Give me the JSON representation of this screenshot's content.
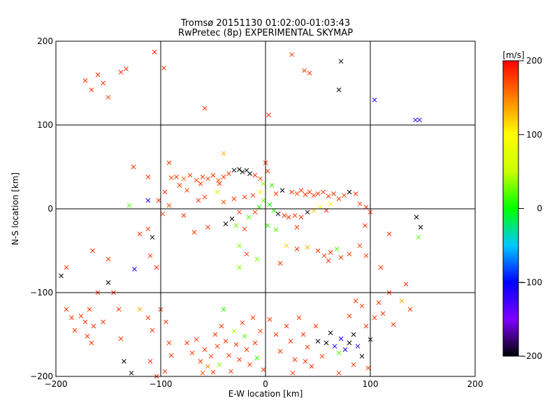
{
  "chart_data": {
    "type": "scatter",
    "title": "Tromsø 20151130 01:02:00-01:03:43",
    "subtitle": "RwPretec (8p) EXPERIMENTAL SKYMAP",
    "xlabel": "E-W location [km]",
    "ylabel": "N-S location [km]",
    "xlim": [
      -200,
      200
    ],
    "ylim": [
      -200,
      200
    ],
    "x_ticks": [
      -200,
      -100,
      0,
      100,
      200
    ],
    "y_ticks": [
      -200,
      -100,
      0,
      100,
      200
    ],
    "grid": true,
    "colorbar": {
      "label": "[m/s]",
      "range": [
        -200,
        200
      ],
      "ticks": [
        200,
        100,
        0,
        -100,
        -200
      ],
      "colors": [
        "#000000",
        "#7f00ff",
        "#0000ff",
        "#00c8ff",
        "#00ff00",
        "#c8ff00",
        "#ffff00",
        "#ff8000",
        "#ff0000"
      ]
    },
    "points": [
      {
        "x": -172,
        "y": 153,
        "v": 180
      },
      {
        "x": -166,
        "y": 142,
        "v": 180
      },
      {
        "x": -160,
        "y": 160,
        "v": 180
      },
      {
        "x": -155,
        "y": 150,
        "v": 180
      },
      {
        "x": -150,
        "y": 133,
        "v": 170
      },
      {
        "x": -138,
        "y": 163,
        "v": 180
      },
      {
        "x": -133,
        "y": 167,
        "v": 180
      },
      {
        "x": -106,
        "y": 187,
        "v": 190
      },
      {
        "x": -97,
        "y": 168,
        "v": 180
      },
      {
        "x": -58,
        "y": 120,
        "v": 180
      },
      {
        "x": 3,
        "y": 112,
        "v": 180
      },
      {
        "x": 25,
        "y": 184,
        "v": 180
      },
      {
        "x": 37,
        "y": 165,
        "v": 180
      },
      {
        "x": 42,
        "y": 162,
        "v": 180
      },
      {
        "x": 72,
        "y": 176,
        "v": -200
      },
      {
        "x": 70,
        "y": 142,
        "v": -200
      },
      {
        "x": 104,
        "y": 130,
        "v": -110
      },
      {
        "x": 143,
        "y": 106,
        "v": -110
      },
      {
        "x": 147,
        "y": 106,
        "v": -110
      },
      {
        "x": -90,
        "y": 37,
        "v": 170
      },
      {
        "x": -85,
        "y": 38,
        "v": 180
      },
      {
        "x": -78,
        "y": 36,
        "v": 160
      },
      {
        "x": -72,
        "y": 40,
        "v": 180
      },
      {
        "x": -66,
        "y": 34,
        "v": 180
      },
      {
        "x": -60,
        "y": 38,
        "v": 180
      },
      {
        "x": -55,
        "y": 36,
        "v": 175
      },
      {
        "x": -50,
        "y": 40,
        "v": 180
      },
      {
        "x": -45,
        "y": 34,
        "v": 170
      },
      {
        "x": -40,
        "y": 38,
        "v": 180
      },
      {
        "x": -35,
        "y": 42,
        "v": 180
      },
      {
        "x": -30,
        "y": 46,
        "v": -200
      },
      {
        "x": -25,
        "y": 47,
        "v": -200
      },
      {
        "x": -22,
        "y": 44,
        "v": -200
      },
      {
        "x": -18,
        "y": 46,
        "v": -200
      },
      {
        "x": -15,
        "y": 42,
        "v": -200
      },
      {
        "x": -10,
        "y": 40,
        "v": 180
      },
      {
        "x": -5,
        "y": 36,
        "v": 170
      },
      {
        "x": 0,
        "y": 55,
        "v": 180
      },
      {
        "x": 2,
        "y": 45,
        "v": 180
      },
      {
        "x": -62,
        "y": 30,
        "v": 180
      },
      {
        "x": -82,
        "y": 28,
        "v": 180
      },
      {
        "x": -75,
        "y": 22,
        "v": 170
      },
      {
        "x": -96,
        "y": 20,
        "v": 180
      },
      {
        "x": -44,
        "y": 30,
        "v": 180
      },
      {
        "x": -112,
        "y": 38,
        "v": 180
      },
      {
        "x": -126,
        "y": 50,
        "v": 180
      },
      {
        "x": -92,
        "y": 55,
        "v": 180
      },
      {
        "x": -40,
        "y": 66,
        "v": 130
      },
      {
        "x": -46,
        "y": 20,
        "v": 60
      },
      {
        "x": 25,
        "y": 20,
        "v": 180
      },
      {
        "x": 30,
        "y": 18,
        "v": 170
      },
      {
        "x": 34,
        "y": 22,
        "v": 180
      },
      {
        "x": 38,
        "y": 17,
        "v": 180
      },
      {
        "x": 42,
        "y": 20,
        "v": 175
      },
      {
        "x": 46,
        "y": 16,
        "v": 180
      },
      {
        "x": 50,
        "y": 18,
        "v": 180
      },
      {
        "x": 55,
        "y": 20,
        "v": 180
      },
      {
        "x": 60,
        "y": 15,
        "v": 180
      },
      {
        "x": 65,
        "y": 18,
        "v": 180
      },
      {
        "x": 70,
        "y": 12,
        "v": 175
      },
      {
        "x": 75,
        "y": 16,
        "v": 180
      },
      {
        "x": 80,
        "y": 20,
        "v": -200
      },
      {
        "x": 86,
        "y": 18,
        "v": 180
      },
      {
        "x": 16,
        "y": 22,
        "v": -200
      },
      {
        "x": 10,
        "y": 18,
        "v": 180
      },
      {
        "x": -12,
        "y": 16,
        "v": 180
      },
      {
        "x": -20,
        "y": 14,
        "v": 180
      },
      {
        "x": -30,
        "y": 12,
        "v": 180
      },
      {
        "x": -40,
        "y": 8,
        "v": 170
      },
      {
        "x": -58,
        "y": 14,
        "v": 180
      },
      {
        "x": -64,
        "y": 10,
        "v": 180
      },
      {
        "x": -5,
        "y": 20,
        "v": 100
      },
      {
        "x": -2,
        "y": 10,
        "v": 30
      },
      {
        "x": 4,
        "y": 5,
        "v": 0
      },
      {
        "x": -6,
        "y": 2,
        "v": 10
      },
      {
        "x": 8,
        "y": -2,
        "v": 10
      },
      {
        "x": -10,
        "y": -4,
        "v": 180
      },
      {
        "x": 12,
        "y": -6,
        "v": -200
      },
      {
        "x": -16,
        "y": -10,
        "v": 20
      },
      {
        "x": 18,
        "y": -8,
        "v": 180
      },
      {
        "x": 22,
        "y": -10,
        "v": 180
      },
      {
        "x": 28,
        "y": -8,
        "v": 175
      },
      {
        "x": 34,
        "y": -10,
        "v": 180
      },
      {
        "x": 40,
        "y": -4,
        "v": -200
      },
      {
        "x": 46,
        "y": -2,
        "v": 120
      },
      {
        "x": 52,
        "y": 2,
        "v": 100
      },
      {
        "x": 58,
        "y": -2,
        "v": 180
      },
      {
        "x": 62,
        "y": 6,
        "v": 110
      },
      {
        "x": -25,
        "y": -4,
        "v": 180
      },
      {
        "x": -32,
        "y": -12,
        "v": -200
      },
      {
        "x": -38,
        "y": -18,
        "v": -200
      },
      {
        "x": -28,
        "y": -20,
        "v": 30
      },
      {
        "x": -20,
        "y": -24,
        "v": 180
      },
      {
        "x": 2,
        "y": -20,
        "v": 10
      },
      {
        "x": 10,
        "y": -25,
        "v": 20
      },
      {
        "x": 30,
        "y": -22,
        "v": 180
      },
      {
        "x": 6,
        "y": 28,
        "v": 10
      },
      {
        "x": -2,
        "y": 30,
        "v": 40
      },
      {
        "x": 90,
        "y": 6,
        "v": 180
      },
      {
        "x": 96,
        "y": 2,
        "v": 180
      },
      {
        "x": 100,
        "y": -4,
        "v": 180
      },
      {
        "x": 95,
        "y": -20,
        "v": 180
      },
      {
        "x": -92,
        "y": 4,
        "v": 180
      },
      {
        "x": -98,
        "y": -6,
        "v": 175
      },
      {
        "x": -102,
        "y": 10,
        "v": 180
      },
      {
        "x": -78,
        "y": -8,
        "v": 180
      },
      {
        "x": -55,
        "y": -22,
        "v": 180
      },
      {
        "x": -68,
        "y": -28,
        "v": 180
      },
      {
        "x": -112,
        "y": -24,
        "v": 180
      },
      {
        "x": -120,
        "y": -30,
        "v": 180
      },
      {
        "x": -108,
        "y": -34,
        "v": -200
      },
      {
        "x": -130,
        "y": 4,
        "v": 20
      },
      {
        "x": -112,
        "y": 10,
        "v": -110
      },
      {
        "x": 144,
        "y": -10,
        "v": -200
      },
      {
        "x": 148,
        "y": -22,
        "v": -200
      },
      {
        "x": 146,
        "y": -34,
        "v": 20
      },
      {
        "x": 118,
        "y": -30,
        "v": 180
      },
      {
        "x": 20,
        "y": -44,
        "v": 120
      },
      {
        "x": 30,
        "y": -48,
        "v": 180
      },
      {
        "x": 40,
        "y": -46,
        "v": 130
      },
      {
        "x": 50,
        "y": -50,
        "v": 180
      },
      {
        "x": 56,
        "y": -56,
        "v": 180
      },
      {
        "x": 62,
        "y": -52,
        "v": 180
      },
      {
        "x": 68,
        "y": -48,
        "v": 20
      },
      {
        "x": 72,
        "y": -58,
        "v": 180
      },
      {
        "x": 80,
        "y": -54,
        "v": 180
      },
      {
        "x": 90,
        "y": -44,
        "v": 180
      },
      {
        "x": 96,
        "y": -56,
        "v": 180
      },
      {
        "x": 60,
        "y": -62,
        "v": 180
      },
      {
        "x": -25,
        "y": -44,
        "v": 30
      },
      {
        "x": -18,
        "y": -54,
        "v": 180
      },
      {
        "x": -8,
        "y": -60,
        "v": 30
      },
      {
        "x": 14,
        "y": -65,
        "v": 180
      },
      {
        "x": -25,
        "y": -70,
        "v": 30
      },
      {
        "x": -150,
        "y": -60,
        "v": 180
      },
      {
        "x": -165,
        "y": -50,
        "v": 180
      },
      {
        "x": -110,
        "y": -56,
        "v": 180
      },
      {
        "x": -104,
        "y": -70,
        "v": 180
      },
      {
        "x": 110,
        "y": -70,
        "v": 180
      },
      {
        "x": -125,
        "y": -72,
        "v": -110
      },
      {
        "x": -195,
        "y": -80,
        "v": -200
      },
      {
        "x": -190,
        "y": -70,
        "v": 180
      },
      {
        "x": -190,
        "y": -120,
        "v": 180
      },
      {
        "x": -185,
        "y": -130,
        "v": 180
      },
      {
        "x": -182,
        "y": -145,
        "v": 180
      },
      {
        "x": -176,
        "y": -128,
        "v": 180
      },
      {
        "x": -172,
        "y": -135,
        "v": 180
      },
      {
        "x": -170,
        "y": -152,
        "v": 180
      },
      {
        "x": -168,
        "y": -120,
        "v": 180
      },
      {
        "x": -166,
        "y": -160,
        "v": 180
      },
      {
        "x": -164,
        "y": -140,
        "v": 180
      },
      {
        "x": -160,
        "y": -100,
        "v": 180
      },
      {
        "x": -155,
        "y": -135,
        "v": 180
      },
      {
        "x": -150,
        "y": -88,
        "v": -200
      },
      {
        "x": -145,
        "y": -100,
        "v": 180
      },
      {
        "x": -140,
        "y": -120,
        "v": 180
      },
      {
        "x": -138,
        "y": -155,
        "v": 180
      },
      {
        "x": -135,
        "y": -182,
        "v": -200
      },
      {
        "x": -128,
        "y": -196,
        "v": -200
      },
      {
        "x": -120,
        "y": -120,
        "v": 130
      },
      {
        "x": -112,
        "y": -130,
        "v": 180
      },
      {
        "x": -108,
        "y": -145,
        "v": 180
      },
      {
        "x": -100,
        "y": -120,
        "v": 180
      },
      {
        "x": -95,
        "y": -135,
        "v": 180
      },
      {
        "x": -92,
        "y": -160,
        "v": 180
      },
      {
        "x": -90,
        "y": -175,
        "v": 180
      },
      {
        "x": -104,
        "y": -200,
        "v": 180
      },
      {
        "x": -110,
        "y": -182,
        "v": 180
      },
      {
        "x": -96,
        "y": -194,
        "v": 180
      },
      {
        "x": -75,
        "y": -160,
        "v": 180
      },
      {
        "x": -70,
        "y": -172,
        "v": 175
      },
      {
        "x": -66,
        "y": -156,
        "v": 180
      },
      {
        "x": -62,
        "y": -182,
        "v": 180
      },
      {
        "x": -60,
        "y": -196,
        "v": 170
      },
      {
        "x": -58,
        "y": -168,
        "v": 180
      },
      {
        "x": -55,
        "y": -188,
        "v": 150
      },
      {
        "x": -52,
        "y": -176,
        "v": 180
      },
      {
        "x": -50,
        "y": -195,
        "v": 180
      },
      {
        "x": -48,
        "y": -150,
        "v": 180
      },
      {
        "x": -46,
        "y": -164,
        "v": 180
      },
      {
        "x": -44,
        "y": -186,
        "v": 30
      },
      {
        "x": -42,
        "y": -140,
        "v": 180
      },
      {
        "x": -40,
        "y": -120,
        "v": 10
      },
      {
        "x": -38,
        "y": -158,
        "v": 180
      },
      {
        "x": -35,
        "y": -175,
        "v": 180
      },
      {
        "x": -33,
        "y": -194,
        "v": 180
      },
      {
        "x": -30,
        "y": -146,
        "v": 40
      },
      {
        "x": -28,
        "y": -162,
        "v": 180
      },
      {
        "x": -25,
        "y": -180,
        "v": 180
      },
      {
        "x": -22,
        "y": -136,
        "v": 180
      },
      {
        "x": -20,
        "y": -152,
        "v": 20
      },
      {
        "x": -18,
        "y": -168,
        "v": 180
      },
      {
        "x": -15,
        "y": -186,
        "v": 180
      },
      {
        "x": -12,
        "y": -130,
        "v": 180
      },
      {
        "x": -10,
        "y": -160,
        "v": 180
      },
      {
        "x": -8,
        "y": -178,
        "v": 10
      },
      {
        "x": -5,
        "y": -146,
        "v": 180
      },
      {
        "x": -2,
        "y": -192,
        "v": 180
      },
      {
        "x": 4,
        "y": -132,
        "v": 180
      },
      {
        "x": 10,
        "y": -150,
        "v": 180
      },
      {
        "x": 14,
        "y": -170,
        "v": 180
      },
      {
        "x": 20,
        "y": -140,
        "v": 180
      },
      {
        "x": 24,
        "y": -158,
        "v": 180
      },
      {
        "x": 28,
        "y": -180,
        "v": 180
      },
      {
        "x": 32,
        "y": -130,
        "v": 180
      },
      {
        "x": 36,
        "y": -150,
        "v": 180
      },
      {
        "x": 40,
        "y": -165,
        "v": 180
      },
      {
        "x": 44,
        "y": -188,
        "v": 180
      },
      {
        "x": 48,
        "y": -140,
        "v": 180
      },
      {
        "x": 50,
        "y": -158,
        "v": -200
      },
      {
        "x": 54,
        "y": -176,
        "v": 180
      },
      {
        "x": 58,
        "y": -160,
        "v": -200
      },
      {
        "x": 62,
        "y": -148,
        "v": -200
      },
      {
        "x": 66,
        "y": -164,
        "v": -110
      },
      {
        "x": 70,
        "y": -172,
        "v": 20
      },
      {
        "x": 72,
        "y": -155,
        "v": -110
      },
      {
        "x": 76,
        "y": -168,
        "v": -110
      },
      {
        "x": 80,
        "y": -160,
        "v": -200
      },
      {
        "x": 84,
        "y": -150,
        "v": -200
      },
      {
        "x": 88,
        "y": -164,
        "v": -110
      },
      {
        "x": 92,
        "y": -176,
        "v": -200
      },
      {
        "x": 96,
        "y": -140,
        "v": 180
      },
      {
        "x": 100,
        "y": -156,
        "v": -200
      },
      {
        "x": 104,
        "y": -130,
        "v": 180
      },
      {
        "x": 108,
        "y": -112,
        "v": 180
      },
      {
        "x": 112,
        "y": -125,
        "v": 180
      },
      {
        "x": 118,
        "y": -100,
        "v": 180
      },
      {
        "x": 122,
        "y": -138,
        "v": 180
      },
      {
        "x": 130,
        "y": -110,
        "v": 130
      },
      {
        "x": 134,
        "y": -90,
        "v": 180
      },
      {
        "x": 138,
        "y": -120,
        "v": 180
      },
      {
        "x": 80,
        "y": -128,
        "v": 180
      },
      {
        "x": 86,
        "y": -110,
        "v": 180
      },
      {
        "x": 92,
        "y": -116,
        "v": 180
      },
      {
        "x": 38,
        "y": -182,
        "v": 180
      },
      {
        "x": 26,
        "y": -196,
        "v": 180
      },
      {
        "x": 70,
        "y": -196,
        "v": 180
      },
      {
        "x": 84,
        "y": -186,
        "v": 180
      },
      {
        "x": 98,
        "y": -190,
        "v": 180
      }
    ]
  }
}
